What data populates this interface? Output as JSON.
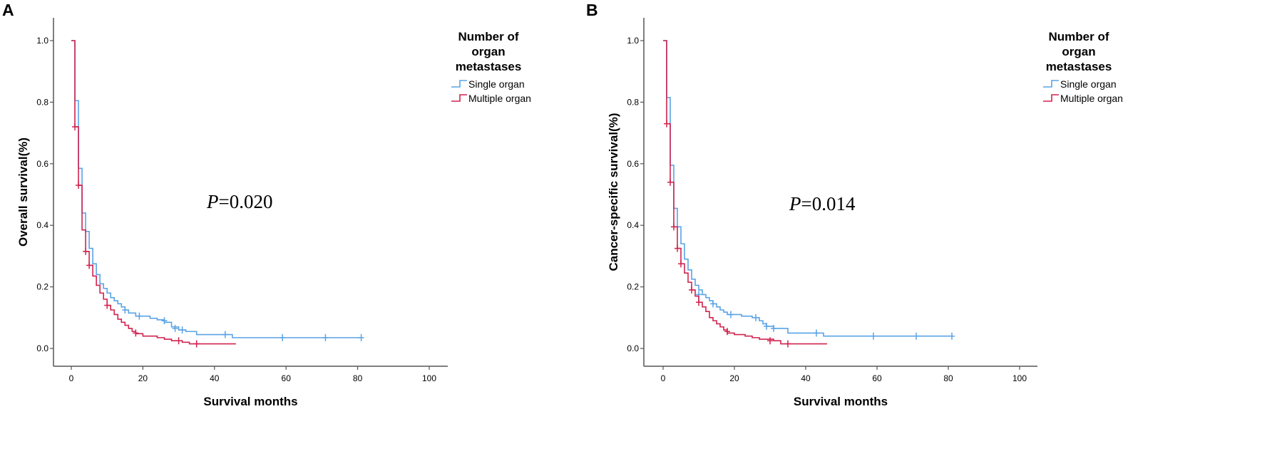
{
  "chart_data": [
    {
      "type": "line",
      "panel_label": "A",
      "xlabel": "Survival months",
      "ylabel": "Overall survival(%)",
      "xlim": [
        -5,
        105
      ],
      "ylim": [
        -0.05,
        1.05
      ],
      "xticks": [
        0,
        20,
        40,
        60,
        80,
        100
      ],
      "yticks": [
        0.0,
        0.2,
        0.4,
        0.6,
        0.8,
        1.0
      ],
      "xtick_labels": [
        "0",
        "20",
        "40",
        "60",
        "80",
        "100"
      ],
      "ytick_labels": [
        "0.0",
        "0.2",
        "0.4",
        "0.6",
        "0.8",
        "1.0"
      ],
      "annotation": {
        "italic": "P",
        "text": "=0.020"
      },
      "legend": {
        "title_lines": [
          "Number of",
          "organ",
          "metastases"
        ]
      },
      "series": [
        {
          "name": "Single organ",
          "color": "#5aa3e6",
          "steps": [
            [
              0,
              1.0
            ],
            [
              1,
              0.805
            ],
            [
              2,
              0.585
            ],
            [
              3,
              0.44
            ],
            [
              4,
              0.38
            ],
            [
              5,
              0.325
            ],
            [
              6,
              0.275
            ],
            [
              7,
              0.24
            ],
            [
              8,
              0.21
            ],
            [
              9,
              0.195
            ],
            [
              10,
              0.18
            ],
            [
              11,
              0.165
            ],
            [
              12,
              0.155
            ],
            [
              13,
              0.145
            ],
            [
              14,
              0.135
            ],
            [
              15,
              0.125
            ],
            [
              16,
              0.115
            ],
            [
              18,
              0.105
            ],
            [
              22,
              0.098
            ],
            [
              24,
              0.093
            ],
            [
              26,
              0.085
            ],
            [
              28,
              0.07
            ],
            [
              30,
              0.06
            ],
            [
              32,
              0.055
            ],
            [
              35,
              0.045
            ],
            [
              45,
              0.035
            ],
            [
              81,
              0.035
            ]
          ],
          "censors": [
            [
              15,
              0.125
            ],
            [
              19,
              0.105
            ],
            [
              26,
              0.09
            ],
            [
              29,
              0.065
            ],
            [
              31,
              0.06
            ],
            [
              43,
              0.045
            ],
            [
              59,
              0.035
            ],
            [
              71,
              0.035
            ],
            [
              81,
              0.035
            ]
          ]
        },
        {
          "name": "Multiple organ",
          "color": "#d0234f",
          "steps": [
            [
              0,
              1.0
            ],
            [
              1,
              0.72
            ],
            [
              2,
              0.53
            ],
            [
              3,
              0.385
            ],
            [
              4,
              0.315
            ],
            [
              5,
              0.27
            ],
            [
              6,
              0.235
            ],
            [
              7,
              0.205
            ],
            [
              8,
              0.18
            ],
            [
              9,
              0.16
            ],
            [
              10,
              0.14
            ],
            [
              11,
              0.125
            ],
            [
              12,
              0.11
            ],
            [
              13,
              0.095
            ],
            [
              14,
              0.085
            ],
            [
              15,
              0.075
            ],
            [
              16,
              0.065
            ],
            [
              17,
              0.055
            ],
            [
              18,
              0.048
            ],
            [
              20,
              0.04
            ],
            [
              24,
              0.035
            ],
            [
              26,
              0.03
            ],
            [
              28,
              0.025
            ],
            [
              31,
              0.02
            ],
            [
              33,
              0.015
            ],
            [
              46,
              0.015
            ]
          ],
          "censors": [
            [
              1,
              0.72
            ],
            [
              2,
              0.53
            ],
            [
              4,
              0.315
            ],
            [
              5,
              0.27
            ],
            [
              10,
              0.14
            ],
            [
              18,
              0.05
            ],
            [
              30,
              0.025
            ],
            [
              35,
              0.015
            ]
          ]
        }
      ]
    },
    {
      "type": "line",
      "panel_label": "B",
      "xlabel": "Survival months",
      "ylabel": "Cancer-specific survival(%)",
      "xlim": [
        -5,
        105
      ],
      "ylim": [
        -0.05,
        1.05
      ],
      "xticks": [
        0,
        20,
        40,
        60,
        80,
        100
      ],
      "yticks": [
        0.0,
        0.2,
        0.4,
        0.6,
        0.8,
        1.0
      ],
      "xtick_labels": [
        "0",
        "20",
        "40",
        "60",
        "80",
        "100"
      ],
      "ytick_labels": [
        "0.0",
        "0.2",
        "0.4",
        "0.6",
        "0.8",
        "1.0"
      ],
      "annotation": {
        "italic": "P",
        "text": "=0.014"
      },
      "legend": {
        "title_lines": [
          "Number of",
          "organ",
          "metastases"
        ]
      },
      "series": [
        {
          "name": "Single organ",
          "color": "#5aa3e6",
          "steps": [
            [
              0,
              1.0
            ],
            [
              1,
              0.815
            ],
            [
              2,
              0.595
            ],
            [
              3,
              0.455
            ],
            [
              4,
              0.395
            ],
            [
              5,
              0.34
            ],
            [
              6,
              0.29
            ],
            [
              7,
              0.255
            ],
            [
              8,
              0.225
            ],
            [
              9,
              0.205
            ],
            [
              10,
              0.19
            ],
            [
              11,
              0.175
            ],
            [
              12,
              0.165
            ],
            [
              13,
              0.155
            ],
            [
              14,
              0.145
            ],
            [
              15,
              0.135
            ],
            [
              16,
              0.125
            ],
            [
              17,
              0.118
            ],
            [
              18,
              0.11
            ],
            [
              22,
              0.105
            ],
            [
              25,
              0.1
            ],
            [
              27,
              0.09
            ],
            [
              28,
              0.08
            ],
            [
              29,
              0.072
            ],
            [
              31,
              0.065
            ],
            [
              35,
              0.05
            ],
            [
              45,
              0.04
            ],
            [
              81,
              0.04
            ]
          ],
          "censors": [
            [
              10,
              0.175
            ],
            [
              14,
              0.145
            ],
            [
              19,
              0.11
            ],
            [
              26,
              0.1
            ],
            [
              29,
              0.072
            ],
            [
              31,
              0.065
            ],
            [
              43,
              0.05
            ],
            [
              59,
              0.04
            ],
            [
              71,
              0.04
            ],
            [
              81,
              0.04
            ]
          ]
        },
        {
          "name": "Multiple organ",
          "color": "#d0234f",
          "steps": [
            [
              0,
              1.0
            ],
            [
              1,
              0.73
            ],
            [
              2,
              0.54
            ],
            [
              3,
              0.395
            ],
            [
              4,
              0.325
            ],
            [
              5,
              0.275
            ],
            [
              6,
              0.245
            ],
            [
              7,
              0.215
            ],
            [
              8,
              0.19
            ],
            [
              9,
              0.17
            ],
            [
              10,
              0.15
            ],
            [
              11,
              0.135
            ],
            [
              12,
              0.12
            ],
            [
              13,
              0.1
            ],
            [
              14,
              0.09
            ],
            [
              15,
              0.08
            ],
            [
              16,
              0.07
            ],
            [
              17,
              0.06
            ],
            [
              18,
              0.05
            ],
            [
              20,
              0.045
            ],
            [
              23,
              0.04
            ],
            [
              25,
              0.035
            ],
            [
              27,
              0.03
            ],
            [
              31,
              0.025
            ],
            [
              33,
              0.015
            ],
            [
              46,
              0.015
            ]
          ],
          "censors": [
            [
              1,
              0.73
            ],
            [
              2,
              0.54
            ],
            [
              3,
              0.395
            ],
            [
              4,
              0.325
            ],
            [
              5,
              0.275
            ],
            [
              8,
              0.19
            ],
            [
              10,
              0.15
            ],
            [
              18,
              0.055
            ],
            [
              30,
              0.025
            ],
            [
              35,
              0.015
            ]
          ]
        }
      ]
    }
  ]
}
